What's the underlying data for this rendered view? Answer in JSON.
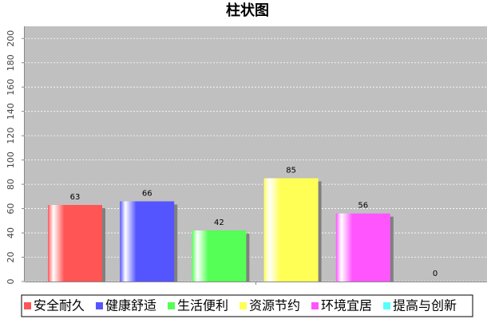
{
  "chart_data": {
    "type": "bar",
    "title": "柱状图",
    "categories": [
      null
    ],
    "series": [
      {
        "name": "安全耐久",
        "color": "#ff5555",
        "values": [
          63
        ]
      },
      {
        "name": "健康舒适",
        "color": "#5555ff",
        "values": [
          66
        ]
      },
      {
        "name": "生活便利",
        "color": "#55ff55",
        "values": [
          42
        ]
      },
      {
        "name": "资源节约",
        "color": "#ffff55",
        "values": [
          85
        ]
      },
      {
        "name": "环境宜居",
        "color": "#ff55ff",
        "values": [
          56
        ]
      },
      {
        "name": "提高与创新",
        "color": "#55ffff",
        "values": [
          0
        ]
      }
    ],
    "ylim": [
      0,
      210
    ],
    "yticks": [
      0,
      20,
      40,
      60,
      80,
      100,
      120,
      140,
      160,
      180,
      200
    ],
    "grid": true
  }
}
